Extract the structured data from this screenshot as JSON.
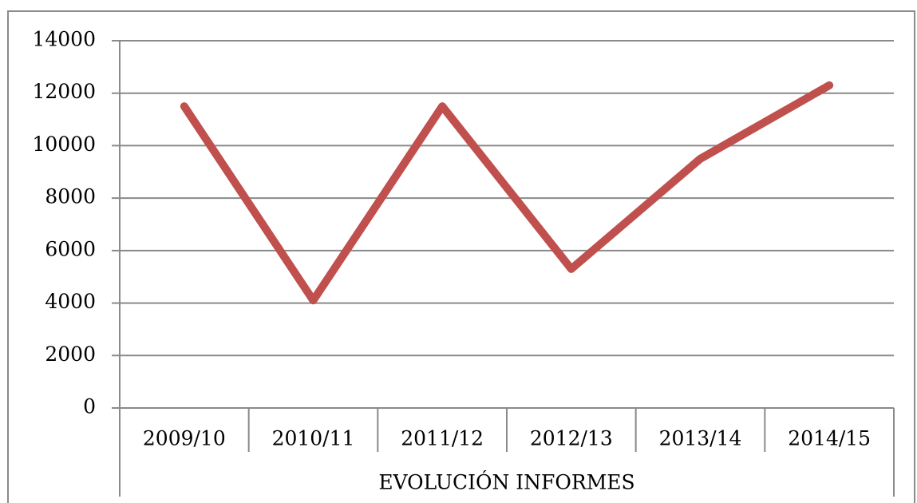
{
  "chart_data": {
    "type": "line",
    "categories": [
      "2009/10",
      "2010/11",
      "2011/12",
      "2012/13",
      "2013/14",
      "2014/15"
    ],
    "values": [
      11500,
      4100,
      11500,
      5300,
      9500,
      12300
    ],
    "color": "#c0504d",
    "x_label": "EVOLUCIÓN INFORMES",
    "ylim": [
      0,
      14000
    ],
    "yticks": [
      0,
      2000,
      4000,
      6000,
      8000,
      10000,
      12000,
      14000
    ],
    "grid": true
  }
}
